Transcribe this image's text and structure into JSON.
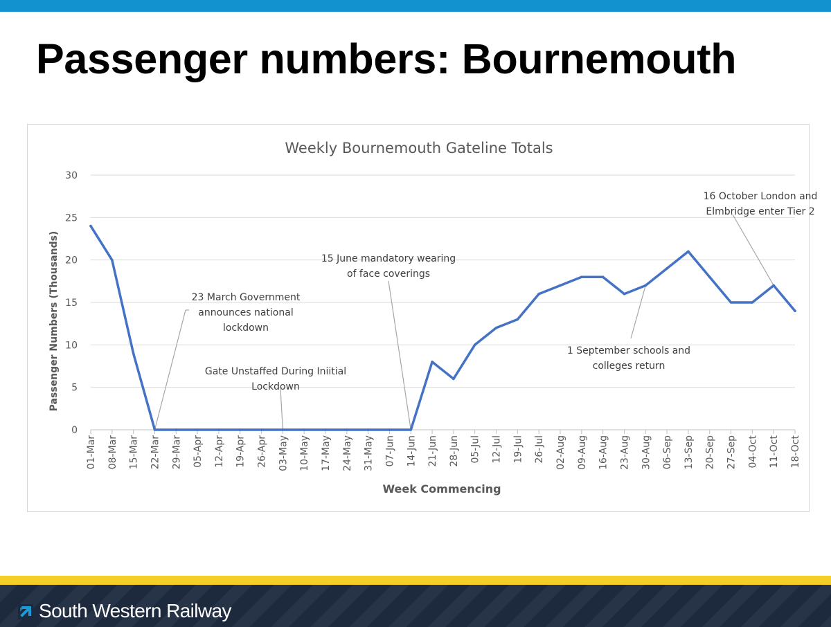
{
  "slide": {
    "title": "Passenger numbers: Bournemouth",
    "brand": "South Western Railway",
    "colors": {
      "top_bar": "#1392d0",
      "accent_yellow": "#f5cf26",
      "footer": "#1d2a3e",
      "line": "#4472c4"
    }
  },
  "chart_data": {
    "type": "line",
    "title": "Weekly Bournemouth Gateline Totals",
    "xlabel": "Week Commencing",
    "ylabel": "Passenger Numbers (Thousands)",
    "ylim": [
      0,
      30
    ],
    "yticks": [
      0,
      5,
      10,
      15,
      20,
      25,
      30
    ],
    "grid": true,
    "legend": "none",
    "categories": [
      "01-Mar",
      "08-Mar",
      "15-Mar",
      "22-Mar",
      "29-Mar",
      "05-Apr",
      "12-Apr",
      "19-Apr",
      "26-Apr",
      "03-May",
      "10-May",
      "17-May",
      "24-May",
      "31-May",
      "07-Jun",
      "14-Jun",
      "21-Jun",
      "28-Jun",
      "05-Jul",
      "12-Jul",
      "19-Jul",
      "26-Jul",
      "02-Aug",
      "09-Aug",
      "16-Aug",
      "23-Aug",
      "30-Aug",
      "06-Sep",
      "13-Sep",
      "20-Sep",
      "27-Sep",
      "04-Oct",
      "11-Oct",
      "18-Oct"
    ],
    "series": [
      {
        "values": [
          24,
          20,
          9,
          0,
          0,
          0,
          0,
          0,
          0,
          0,
          0,
          0,
          0,
          0,
          0,
          0,
          8,
          6,
          10,
          12,
          13,
          16,
          17,
          18,
          18,
          16,
          17,
          19,
          21,
          18,
          15,
          15,
          17,
          14
        ]
      }
    ],
    "annotations": [
      {
        "lines": [
          "23 March Government",
          "announces national",
          "lockdown"
        ],
        "category": "22-Mar",
        "value": 0
      },
      {
        "lines": [
          "Gate Unstaffed During Iniitial",
          "Lockdown"
        ],
        "category": "03-May",
        "value": 0
      },
      {
        "lines": [
          "15 June mandatory wearing",
          "of face coverings"
        ],
        "category": "14-Jun",
        "value": 0
      },
      {
        "lines": [
          "1 September schools and",
          "colleges return"
        ],
        "category": "30-Aug",
        "value": 17
      },
      {
        "lines": [
          "16 October London and",
          "Elmbridge enter Tier 2"
        ],
        "category": "11-Oct",
        "value": 17
      }
    ]
  }
}
